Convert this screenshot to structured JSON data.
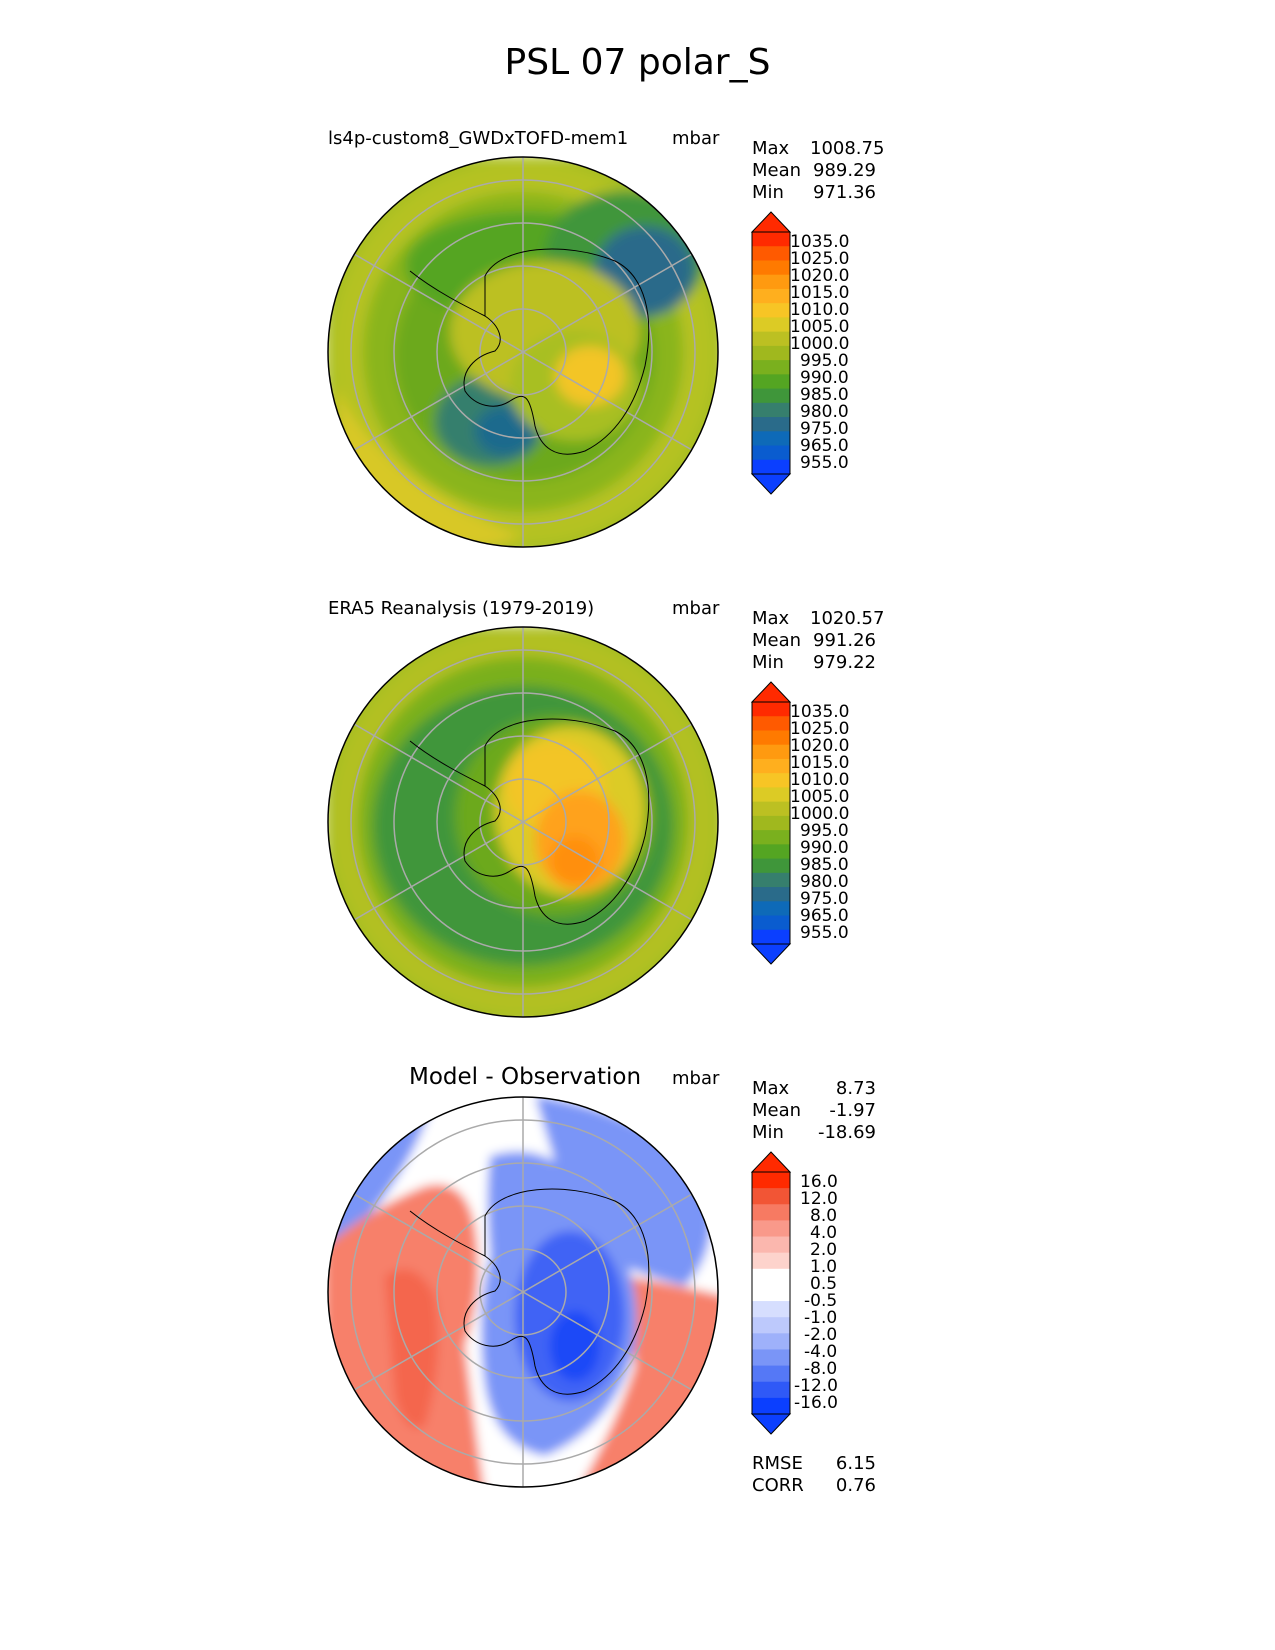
{
  "figure": {
    "title": "PSL 07 polar_S"
  },
  "panels": [
    {
      "title": "ls4p-custom8_GWDxTOFD-mem1",
      "units": "mbar",
      "stats": [
        {
          "label": "Max",
          "value": "1008.75"
        },
        {
          "label": "Mean",
          "value": "989.29"
        },
        {
          "label": "Min",
          "value": "971.36"
        }
      ],
      "colorbar": {
        "ticks": [
          "1035.0",
          "1025.0",
          "1020.0",
          "1015.0",
          "1010.0",
          "1005.0",
          "1000.0",
          "995.0",
          "990.0",
          "985.0",
          "980.0",
          "975.0",
          "965.0",
          "955.0"
        ],
        "colors": [
          "#ff2a00",
          "#ff5a00",
          "#ff7a00",
          "#ff9a10",
          "#ffaf1e",
          "#f7c525",
          "#dccb25",
          "#bcc022",
          "#a0b81e",
          "#7ab01e",
          "#54a522",
          "#3f963a",
          "#367f6d",
          "#2a6b8a",
          "#0e6ab8",
          "#0a5ccf",
          "#0b3fff"
        ],
        "lower_extend_color": "#0b3fff",
        "upper_extend_color": "#ff2a00"
      },
      "map_colors": {
        "background": "#a8bf24",
        "outer_ring": "#b9c322",
        "mid_ring": "#6ca91f",
        "trough": "#3f963a",
        "deep_low": "#367f6d",
        "core_low": "#1f6a8d",
        "high": "#dccb25",
        "high_core": "#f3c525"
      }
    },
    {
      "title": "ERA5 Reanalysis (1979-2019)",
      "units": "mbar",
      "stats": [
        {
          "label": "Max",
          "value": "1020.57"
        },
        {
          "label": "Mean",
          "value": "991.26"
        },
        {
          "label": "Min",
          "value": "979.22"
        }
      ],
      "colorbar": {
        "ticks": [
          "1035.0",
          "1025.0",
          "1020.0",
          "1015.0",
          "1010.0",
          "1005.0",
          "1000.0",
          "995.0",
          "990.0",
          "985.0",
          "980.0",
          "975.0",
          "965.0",
          "955.0"
        ],
        "colors": [
          "#ff2a00",
          "#ff5a00",
          "#ff7a00",
          "#ff9a10",
          "#ffaf1e",
          "#f7c525",
          "#dccb25",
          "#bcc022",
          "#a0b81e",
          "#7ab01e",
          "#54a522",
          "#3f963a",
          "#367f6d",
          "#2a6b8a",
          "#0e6ab8",
          "#0a5ccf",
          "#0b3fff"
        ],
        "lower_extend_color": "#0b3fff",
        "upper_extend_color": "#ff2a00"
      },
      "map_colors": {
        "background": "#a8bf24",
        "outer_ring": "#b3c023",
        "mid_ring": "#6ca91f",
        "trough": "#3f963a",
        "high": "#e8c825",
        "high_core": "#ffa21a",
        "high_peak": "#ff8f10"
      }
    },
    {
      "title": "Model - Observation",
      "units": "mbar",
      "stats": [
        {
          "label": "Max",
          "value": "8.73"
        },
        {
          "label": "Mean",
          "value": "-1.97"
        },
        {
          "label": "Min",
          "value": "-18.69"
        }
      ],
      "colorbar": {
        "ticks": [
          "16.0",
          "12.0",
          "8.0",
          "4.0",
          "2.0",
          "1.0",
          "0.5",
          "-0.5",
          "-1.0",
          "-2.0",
          "-4.0",
          "-8.0",
          "-12.0",
          "-16.0"
        ],
        "colors": [
          "#ff2a00",
          "#f25535",
          "#f77a62",
          "#f9998a",
          "#fbb7ae",
          "#fdd3cc",
          "#ffffff",
          "#ffffff",
          "#d6defe",
          "#bdc9fc",
          "#9eb1fa",
          "#7a95f7",
          "#5578f6",
          "#2f59f7",
          "#0b3fff"
        ],
        "lower_extend_color": "#0b3fff",
        "upper_extend_color": "#ff2a00"
      },
      "map_colors": {
        "background": "#ffffff",
        "positive": "#f7806a",
        "positive_light": "#fbb5aa",
        "negative": "#7a95f7",
        "negative_strong": "#3f63f5",
        "negative_core": "#1e4af7"
      },
      "extra_stats": [
        {
          "label": "RMSE",
          "value": "6.15"
        },
        {
          "label": "CORR",
          "value": "0.76"
        }
      ]
    }
  ]
}
